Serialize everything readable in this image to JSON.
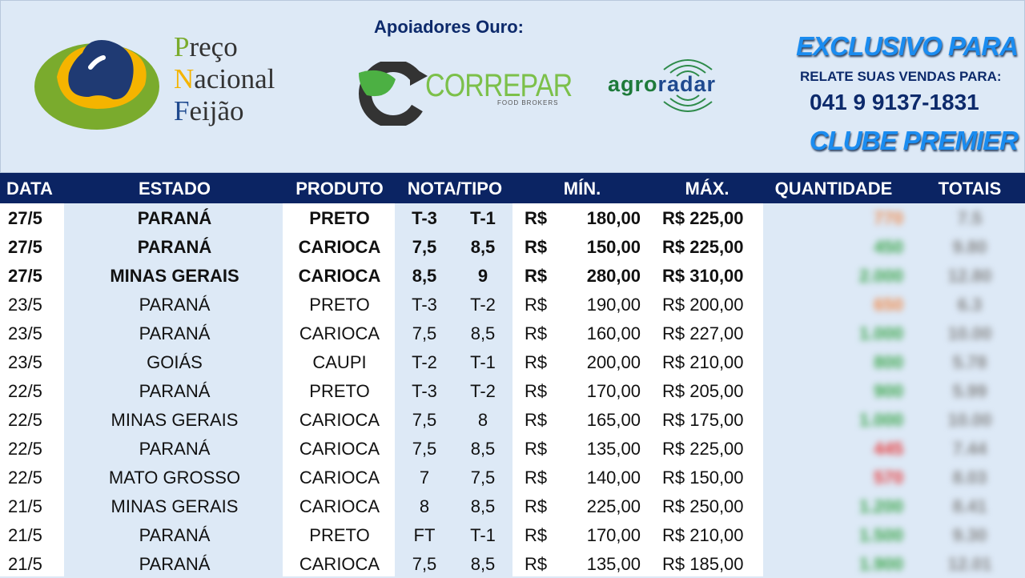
{
  "brand": {
    "line1_initial": "P",
    "line1_rest": "reço",
    "line2_initial": "N",
    "line2_rest": "acional",
    "line3_initial": "F",
    "line3_rest": "eijão"
  },
  "sponsors": {
    "title": "Apoiadores Ouro:",
    "correpar": "CORREPAR",
    "correpar_sub": "FOOD BROKERS",
    "agro_a": "agro",
    "agro_b": "radar"
  },
  "contact": {
    "label": "RELATE SUAS VENDAS PARA:",
    "phone": "041 9 9137-1831"
  },
  "colors": {
    "header": "#0b2463",
    "accent_blue": "#1a8cf0",
    "qty_green": "#3aa64a",
    "qty_orange": "#f08a4b",
    "qty_red": "#e83a3a"
  },
  "columns": [
    "DATA",
    "ESTADO",
    "PRODUTO",
    "NOTA/TIPO",
    "MÍN.",
    "MÁX.",
    "QUANTIDADE",
    "TOTAIS"
  ],
  "rows": [
    {
      "data": "27/5",
      "estado": "PARANÁ",
      "produto": "PRETO",
      "nota1": "T-3",
      "nota2": "T-1",
      "cur": "R$",
      "min": "180,00",
      "max": "R$ 225,00",
      "qtd": "770",
      "qtd_color": "orange",
      "total": "7.5",
      "bold": true
    },
    {
      "data": "27/5",
      "estado": "PARANÁ",
      "produto": "CARIOCA",
      "nota1": "7,5",
      "nota2": "8,5",
      "cur": "R$",
      "min": "150,00",
      "max": "R$ 225,00",
      "qtd": "450",
      "qtd_color": "green",
      "total": "9.80",
      "bold": true
    },
    {
      "data": "27/5",
      "estado": "MINAS GERAIS",
      "produto": "CARIOCA",
      "nota1": "8,5",
      "nota2": "9",
      "cur": "R$",
      "min": "280,00",
      "max": "R$ 310,00",
      "qtd": "2.000",
      "qtd_color": "green",
      "total": "12.80",
      "bold": true
    },
    {
      "data": "23/5",
      "estado": "PARANÁ",
      "produto": "PRETO",
      "nota1": "T-3",
      "nota2": "T-2",
      "cur": "R$",
      "min": "190,00",
      "max": "R$ 200,00",
      "qtd": "650",
      "qtd_color": "orange",
      "total": "6.3",
      "bold": false
    },
    {
      "data": "23/5",
      "estado": "PARANÁ",
      "produto": "CARIOCA",
      "nota1": "7,5",
      "nota2": "8,5",
      "cur": "R$",
      "min": "160,00",
      "max": "R$ 227,00",
      "qtd": "1.000",
      "qtd_color": "green",
      "total": "10.00",
      "bold": false
    },
    {
      "data": "23/5",
      "estado": "GOIÁS",
      "produto": "CAUPI",
      "nota1": "T-2",
      "nota2": "T-1",
      "cur": "R$",
      "min": "200,00",
      "max": "R$ 210,00",
      "qtd": "800",
      "qtd_color": "green",
      "total": "5.78",
      "bold": false
    },
    {
      "data": "22/5",
      "estado": "PARANÁ",
      "produto": "PRETO",
      "nota1": "T-3",
      "nota2": "T-2",
      "cur": "R$",
      "min": "170,00",
      "max": "R$ 205,00",
      "qtd": "900",
      "qtd_color": "green",
      "total": "5.99",
      "bold": false
    },
    {
      "data": "22/5",
      "estado": "MINAS GERAIS",
      "produto": "CARIOCA",
      "nota1": "7,5",
      "nota2": "8",
      "cur": "R$",
      "min": "165,00",
      "max": "R$ 175,00",
      "qtd": "1.000",
      "qtd_color": "green",
      "total": "10.00",
      "bold": false
    },
    {
      "data": "22/5",
      "estado": "PARANÁ",
      "produto": "CARIOCA",
      "nota1": "7,5",
      "nota2": "8,5",
      "cur": "R$",
      "min": "135,00",
      "max": "R$ 225,00",
      "qtd": "445",
      "qtd_color": "red",
      "total": "7.44",
      "bold": false
    },
    {
      "data": "22/5",
      "estado": "MATO GROSSO",
      "produto": "CARIOCA",
      "nota1": "7",
      "nota2": "7,5",
      "cur": "R$",
      "min": "140,00",
      "max": "R$ 150,00",
      "qtd": "570",
      "qtd_color": "red",
      "total": "8.03",
      "bold": false
    },
    {
      "data": "21/5",
      "estado": "MINAS GERAIS",
      "produto": "CARIOCA",
      "nota1": "8",
      "nota2": "8,5",
      "cur": "R$",
      "min": "225,00",
      "max": "R$ 250,00",
      "qtd": "1.200",
      "qtd_color": "green",
      "total": "8.41",
      "bold": false
    },
    {
      "data": "21/5",
      "estado": "PARANÁ",
      "produto": "PRETO",
      "nota1": "FT",
      "nota2": "T-1",
      "cur": "R$",
      "min": "170,00",
      "max": "R$ 210,00",
      "qtd": "1.500",
      "qtd_color": "green",
      "total": "9.30",
      "bold": false
    },
    {
      "data": "21/5",
      "estado": "PARANÁ",
      "produto": "CARIOCA",
      "nota1": "7,5",
      "nota2": "8,5",
      "cur": "R$",
      "min": "135,00",
      "max": "R$ 185,00",
      "qtd": "1.900",
      "qtd_color": "green",
      "total": "12.01",
      "bold": false
    }
  ],
  "overlay": {
    "line1": "EXCLUSIVO",
    "line2": "PARA",
    "line3": "CLUBE PREMIER"
  }
}
